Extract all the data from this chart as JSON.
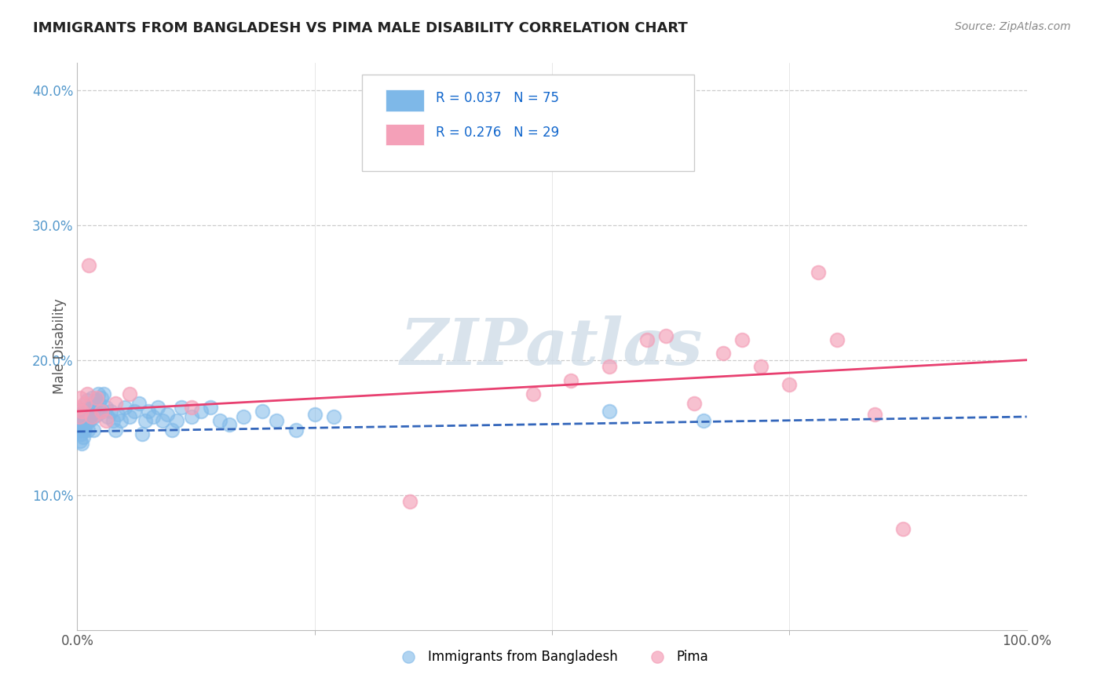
{
  "title": "IMMIGRANTS FROM BANGLADESH VS PIMA MALE DISABILITY CORRELATION CHART",
  "source": "Source: ZipAtlas.com",
  "ylabel": "Male Disability",
  "xlim": [
    0,
    1.0
  ],
  "ylim": [
    0.0,
    0.42
  ],
  "x_ticks": [
    0.0,
    1.0
  ],
  "x_tick_labels": [
    "0.0%",
    "100.0%"
  ],
  "y_ticks": [
    0.1,
    0.2,
    0.3,
    0.4
  ],
  "y_tick_labels": [
    "10.0%",
    "20.0%",
    "30.0%",
    "40.0%"
  ],
  "legend_R_blue": "0.037",
  "legend_N_blue": "75",
  "legend_R_pink": "0.276",
  "legend_N_pink": "29",
  "label_blue": "Immigrants from Bangladesh",
  "label_pink": "Pima",
  "blue_color": "#7eb8e8",
  "pink_color": "#f4a0b8",
  "trend_blue_color": "#3366bb",
  "trend_pink_color": "#e84070",
  "watermark": "ZIPatlas",
  "blue_x": [
    0.001,
    0.001,
    0.002,
    0.002,
    0.003,
    0.003,
    0.003,
    0.004,
    0.004,
    0.004,
    0.005,
    0.005,
    0.006,
    0.006,
    0.007,
    0.007,
    0.007,
    0.008,
    0.008,
    0.009,
    0.009,
    0.01,
    0.01,
    0.011,
    0.011,
    0.012,
    0.013,
    0.014,
    0.015,
    0.015,
    0.016,
    0.017,
    0.018,
    0.019,
    0.02,
    0.021,
    0.022,
    0.023,
    0.025,
    0.026,
    0.028,
    0.03,
    0.032,
    0.035,
    0.038,
    0.04,
    0.043,
    0.046,
    0.05,
    0.055,
    0.06,
    0.065,
    0.068,
    0.072,
    0.075,
    0.08,
    0.085,
    0.09,
    0.095,
    0.1,
    0.105,
    0.11,
    0.12,
    0.13,
    0.14,
    0.15,
    0.16,
    0.175,
    0.195,
    0.21,
    0.23,
    0.25,
    0.27,
    0.56,
    0.66
  ],
  "blue_y": [
    0.155,
    0.16,
    0.148,
    0.163,
    0.14,
    0.152,
    0.158,
    0.145,
    0.152,
    0.16,
    0.138,
    0.148,
    0.143,
    0.155,
    0.15,
    0.157,
    0.162,
    0.148,
    0.156,
    0.153,
    0.158,
    0.162,
    0.17,
    0.155,
    0.148,
    0.16,
    0.155,
    0.165,
    0.16,
    0.172,
    0.168,
    0.148,
    0.158,
    0.165,
    0.17,
    0.16,
    0.175,
    0.168,
    0.172,
    0.162,
    0.175,
    0.165,
    0.158,
    0.162,
    0.155,
    0.148,
    0.16,
    0.155,
    0.165,
    0.158,
    0.162,
    0.168,
    0.145,
    0.155,
    0.162,
    0.158,
    0.165,
    0.155,
    0.16,
    0.148,
    0.155,
    0.165,
    0.158,
    0.162,
    0.165,
    0.155,
    0.152,
    0.158,
    0.162,
    0.155,
    0.148,
    0.16,
    0.158,
    0.162,
    0.155
  ],
  "pink_x": [
    0.001,
    0.002,
    0.003,
    0.005,
    0.008,
    0.01,
    0.012,
    0.015,
    0.02,
    0.025,
    0.03,
    0.04,
    0.055,
    0.12,
    0.35,
    0.48,
    0.52,
    0.56,
    0.6,
    0.62,
    0.65,
    0.68,
    0.7,
    0.72,
    0.75,
    0.78,
    0.8,
    0.84,
    0.87
  ],
  "pink_y": [
    0.165,
    0.158,
    0.172,
    0.162,
    0.168,
    0.175,
    0.27,
    0.158,
    0.172,
    0.162,
    0.155,
    0.168,
    0.175,
    0.165,
    0.095,
    0.175,
    0.185,
    0.195,
    0.215,
    0.218,
    0.168,
    0.205,
    0.215,
    0.195,
    0.182,
    0.265,
    0.215,
    0.16,
    0.075
  ],
  "blue_trend_x0": 0.0,
  "blue_trend_y0": 0.147,
  "blue_trend_x1": 1.0,
  "blue_trend_y1": 0.158,
  "pink_trend_x0": 0.0,
  "pink_trend_y0": 0.162,
  "pink_trend_x1": 1.0,
  "pink_trend_y1": 0.2
}
